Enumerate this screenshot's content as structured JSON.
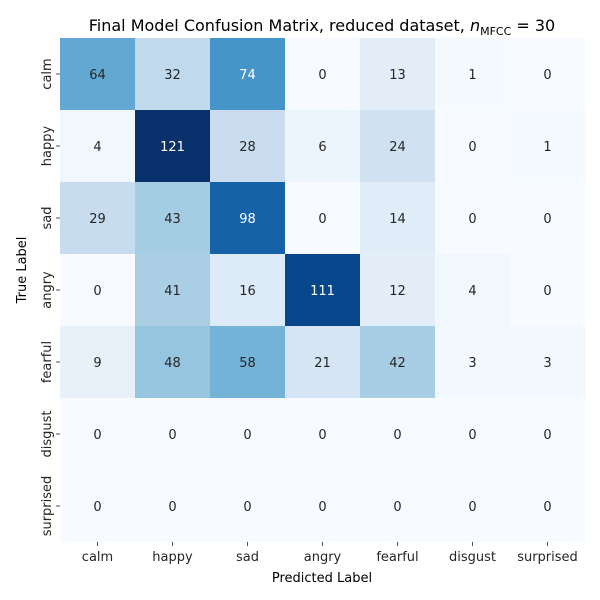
{
  "chart_data": {
    "type": "heatmap",
    "title_main": "Final Model Confusion Matrix, reduced dataset, ",
    "title_var": "n",
    "title_sub": "MFCC",
    "title_eq": " = 30",
    "xlabel": "Predicted Label",
    "ylabel": "True Label",
    "x_categories": [
      "calm",
      "happy",
      "sad",
      "angry",
      "fearful",
      "disgust",
      "surprised"
    ],
    "y_categories": [
      "calm",
      "happy",
      "sad",
      "angry",
      "fearful",
      "disgust",
      "surprised"
    ],
    "values": [
      [
        64,
        32,
        74,
        0,
        13,
        1,
        0
      ],
      [
        4,
        121,
        28,
        6,
        24,
        0,
        1
      ],
      [
        29,
        43,
        98,
        0,
        14,
        0,
        0
      ],
      [
        0,
        41,
        16,
        111,
        12,
        4,
        0
      ],
      [
        9,
        48,
        58,
        21,
        42,
        3,
        3
      ],
      [
        0,
        0,
        0,
        0,
        0,
        0,
        0
      ],
      [
        0,
        0,
        0,
        0,
        0,
        0,
        0
      ]
    ],
    "colormap": "Blues",
    "vmin": 0,
    "vmax": 121,
    "colorbar": false,
    "grid": false
  }
}
